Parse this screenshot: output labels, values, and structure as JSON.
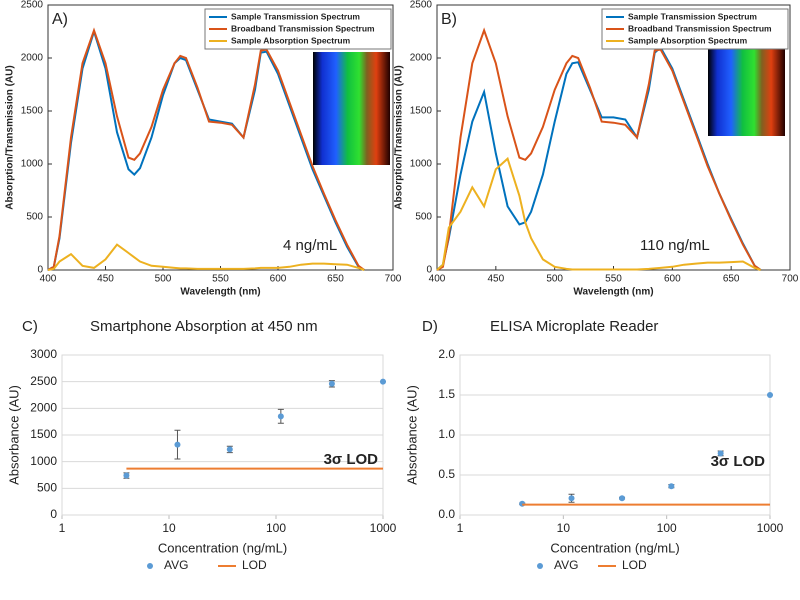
{
  "chart_data": [
    {
      "type": "line",
      "panel_label": "A)",
      "x_label": "Wavelength (nm)",
      "y_label": "Absorption/Transmission (AU)",
      "annotation": "4 ng/mL",
      "xlim": [
        400,
        700
      ],
      "xticks": [
        400,
        450,
        500,
        550,
        600,
        650,
        700
      ],
      "ylim": [
        0,
        2500
      ],
      "yticks": [
        0,
        500,
        1000,
        1500,
        2000,
        2500
      ],
      "legend": "upper right",
      "x": [
        400,
        405,
        410,
        420,
        430,
        440,
        450,
        460,
        470,
        475,
        480,
        490,
        500,
        510,
        515,
        520,
        530,
        540,
        550,
        560,
        570,
        580,
        585,
        590,
        600,
        610,
        620,
        630,
        640,
        650,
        660,
        670,
        675
      ],
      "series": [
        {
          "name": "Sample Transmission Spectrum",
          "color": "#0072bd",
          "values": [
            0,
            30,
            300,
            1200,
            1900,
            2250,
            1900,
            1300,
            950,
            900,
            960,
            1250,
            1650,
            1950,
            2000,
            1980,
            1700,
            1420,
            1400,
            1380,
            1250,
            1700,
            2050,
            2060,
            1850,
            1550,
            1250,
            950,
            700,
            450,
            220,
            30,
            0
          ]
        },
        {
          "name": "Broadband Transmission Spectrum",
          "color": "#d95319",
          "values": [
            0,
            30,
            320,
            1250,
            1950,
            2260,
            1950,
            1450,
            1060,
            1040,
            1100,
            1350,
            1700,
            1950,
            2020,
            2000,
            1720,
            1400,
            1390,
            1370,
            1250,
            1750,
            2070,
            2080,
            1880,
            1580,
            1280,
            980,
            720,
            470,
            240,
            40,
            0
          ]
        },
        {
          "name": "Sample Absorption Spectrum",
          "color": "#edb120",
          "values": [
            0,
            10,
            80,
            150,
            40,
            20,
            100,
            240,
            160,
            120,
            80,
            40,
            30,
            20,
            15,
            15,
            10,
            10,
            10,
            10,
            10,
            15,
            20,
            20,
            20,
            30,
            50,
            60,
            60,
            55,
            50,
            20,
            0
          ]
        }
      ]
    },
    {
      "type": "line",
      "panel_label": "B)",
      "x_label": "Wavelength (nm)",
      "y_label": "Absorption/Transmission (AU)",
      "annotation": "110 ng/mL",
      "xlim": [
        400,
        700
      ],
      "xticks": [
        400,
        450,
        500,
        550,
        600,
        650,
        700
      ],
      "ylim": [
        0,
        2500
      ],
      "yticks": [
        0,
        500,
        1000,
        1500,
        2000,
        2500
      ],
      "legend": "upper right",
      "x": [
        400,
        405,
        410,
        420,
        430,
        440,
        450,
        460,
        470,
        475,
        480,
        490,
        500,
        510,
        515,
        520,
        530,
        540,
        550,
        560,
        570,
        580,
        585,
        590,
        600,
        610,
        620,
        630,
        640,
        650,
        660,
        670,
        675
      ],
      "series": [
        {
          "name": "Sample Transmission Spectrum",
          "color": "#0072bd",
          "values": [
            0,
            50,
            300,
            900,
            1400,
            1680,
            1100,
            600,
            430,
            450,
            550,
            900,
            1400,
            1850,
            1950,
            1960,
            1700,
            1440,
            1440,
            1420,
            1250,
            1700,
            2050,
            2100,
            1900,
            1600,
            1300,
            1000,
            720,
            480,
            250,
            40,
            0
          ]
        },
        {
          "name": "Broadband Transmission Spectrum",
          "color": "#d95319",
          "values": [
            0,
            30,
            320,
            1250,
            1950,
            2260,
            1950,
            1450,
            1060,
            1040,
            1100,
            1350,
            1700,
            1950,
            2020,
            2000,
            1720,
            1400,
            1390,
            1370,
            1250,
            1750,
            2070,
            2080,
            1880,
            1580,
            1280,
            980,
            720,
            470,
            240,
            40,
            0
          ]
        },
        {
          "name": "Sample Absorption Spectrum",
          "color": "#edb120",
          "values": [
            0,
            50,
            400,
            550,
            780,
            600,
            950,
            1050,
            700,
            450,
            300,
            100,
            30,
            10,
            5,
            5,
            5,
            5,
            5,
            5,
            5,
            10,
            15,
            20,
            30,
            50,
            60,
            70,
            70,
            75,
            80,
            20,
            0
          ]
        }
      ]
    },
    {
      "type": "scatter",
      "panel_label": "C)",
      "title": "Smartphone Absorption at 450 nm",
      "x_label": "Concentration (ng/mL)",
      "y_label": "Absorbance (AU)",
      "annotation": "3σ LOD",
      "xscale": "log",
      "xlim": [
        1,
        1000
      ],
      "xticks": [
        1,
        10,
        100,
        1000
      ],
      "ylim": [
        0,
        3000
      ],
      "yticks": [
        0,
        500,
        1000,
        1500,
        2000,
        2500,
        3000
      ],
      "grid": true,
      "legend": "bottom",
      "series": [
        {
          "name": "AVG",
          "color": "#5b9bd5",
          "x": [
            4,
            12,
            37,
            111,
            333,
            1000
          ],
          "values": [
            740,
            1320,
            1230,
            1850,
            2460,
            2500
          ],
          "errors": [
            50,
            270,
            60,
            130,
            60,
            0
          ]
        },
        {
          "name": "LOD",
          "color": "#ed7d31",
          "x": [
            4,
            1000
          ],
          "values": [
            870,
            870
          ]
        }
      ]
    },
    {
      "type": "scatter",
      "panel_label": "D)",
      "title": "ELISA Microplate Reader",
      "x_label": "Concentration (ng/mL)",
      "y_label": "Absorbance (AU)",
      "annotation": "3σ LOD",
      "xscale": "log",
      "xlim": [
        1,
        1000
      ],
      "xticks": [
        1,
        10,
        100,
        1000
      ],
      "ylim": [
        0,
        2
      ],
      "yticks": [
        {
          "value": 0,
          "label": "0.0"
        },
        0.5,
        {
          "value": 1,
          "label": "1.0"
        },
        1.5,
        {
          "value": 2,
          "label": "2.0"
        }
      ],
      "grid": true,
      "legend": "bottom",
      "series": [
        {
          "name": "AVG",
          "color": "#5b9bd5",
          "x": [
            4,
            12,
            37,
            111,
            333,
            1000
          ],
          "values": [
            0.14,
            0.21,
            0.21,
            0.36,
            0.77,
            1.5
          ],
          "errors": [
            0.01,
            0.05,
            0.01,
            0.02,
            0.03,
            0
          ]
        },
        {
          "name": "LOD",
          "color": "#ed7d31",
          "x": [
            4,
            1000
          ],
          "values": [
            0.13,
            0.13
          ]
        }
      ]
    }
  ]
}
